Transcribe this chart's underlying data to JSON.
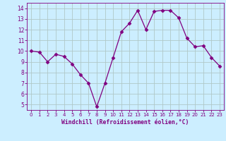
{
  "x": [
    0,
    1,
    2,
    3,
    4,
    5,
    6,
    7,
    8,
    9,
    10,
    11,
    12,
    13,
    14,
    15,
    16,
    17,
    18,
    19,
    20,
    21,
    22,
    23
  ],
  "y": [
    10.0,
    9.9,
    9.0,
    9.7,
    9.5,
    8.8,
    7.8,
    7.0,
    4.8,
    7.0,
    9.4,
    11.8,
    12.6,
    13.8,
    12.0,
    13.7,
    13.8,
    13.8,
    13.1,
    11.2,
    10.4,
    10.5,
    9.4,
    8.6
  ],
  "line_color": "#800080",
  "marker": "D",
  "marker_size": 2.5,
  "bg_color": "#cceeff",
  "grid_color": "#b0c8c8",
  "xlabel": "Windchill (Refroidissement éolien,°C)",
  "xlabel_color": "#800080",
  "tick_color": "#800080",
  "ylim": [
    4.5,
    14.5
  ],
  "xlim": [
    -0.5,
    23.5
  ],
  "yticks": [
    5,
    6,
    7,
    8,
    9,
    10,
    11,
    12,
    13,
    14
  ],
  "xticks": [
    0,
    1,
    2,
    3,
    4,
    5,
    6,
    7,
    8,
    9,
    10,
    11,
    12,
    13,
    14,
    15,
    16,
    17,
    18,
    19,
    20,
    21,
    22,
    23
  ],
  "xticklabels": [
    "0",
    "1",
    "2",
    "3",
    "4",
    "5",
    "6",
    "7",
    "8",
    "9",
    "10",
    "11",
    "12",
    "13",
    "14",
    "15",
    "16",
    "17",
    "18",
    "19",
    "20",
    "21",
    "22",
    "23"
  ]
}
